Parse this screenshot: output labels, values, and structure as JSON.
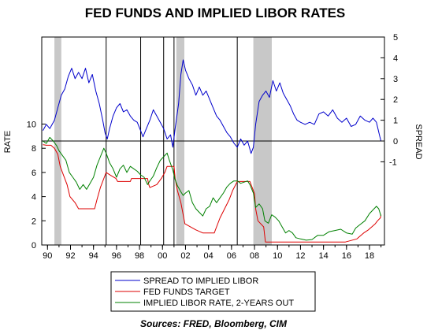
{
  "chart_data": {
    "type": "line",
    "title": "FED FUNDS AND IMPLIED LIBOR RATES",
    "ylabel_left": "RATE",
    "ylabel_right": "SPREAD",
    "source": "Sources: FRED, Bloomberg, CIM",
    "x_range": [
      1989.5,
      2019.3
    ],
    "x_ticks": [
      {
        "x": 1990,
        "label": "90"
      },
      {
        "x": 1992,
        "label": "92"
      },
      {
        "x": 1994,
        "label": "94"
      },
      {
        "x": 1996,
        "label": "96"
      },
      {
        "x": 1998,
        "label": "98"
      },
      {
        "x": 2000,
        "label": "00"
      },
      {
        "x": 2002,
        "label": "02"
      },
      {
        "x": 2004,
        "label": "04"
      },
      {
        "x": 2006,
        "label": "06"
      },
      {
        "x": 2008,
        "label": "08"
      },
      {
        "x": 2010,
        "label": "10"
      },
      {
        "x": 2012,
        "label": "12"
      },
      {
        "x": 2014,
        "label": "14"
      },
      {
        "x": 2016,
        "label": "16"
      },
      {
        "x": 2018,
        "label": "18"
      }
    ],
    "left_axis": {
      "range": [
        0,
        17.2
      ],
      "ticks": [
        0,
        2,
        4,
        6,
        8,
        10
      ]
    },
    "right_axis": {
      "range": [
        -5,
        5
      ],
      "ticks": [
        -1,
        0,
        1,
        2,
        3,
        4,
        5
      ]
    },
    "recessions": [
      [
        1990.6,
        1991.2
      ],
      [
        2001.2,
        2001.9
      ],
      [
        2007.9,
        2009.5
      ]
    ],
    "vertical_markers": [
      1995.1,
      1998.1,
      2000.1,
      2001.0,
      2006.5
    ],
    "colors": {
      "spread": "#0000cc",
      "fed": "#dd0000",
      "libor": "#008000",
      "recession": "#c8c8c8"
    },
    "series": [
      {
        "name": "SPREAD TO IMPLIED LIBOR",
        "axis": "right",
        "points": [
          [
            1989.6,
            0.5
          ],
          [
            1989.9,
            0.8
          ],
          [
            1990.2,
            0.6
          ],
          [
            1990.6,
            1.0
          ],
          [
            1990.9,
            1.6
          ],
          [
            1991.2,
            2.2
          ],
          [
            1991.5,
            2.5
          ],
          [
            1991.8,
            3.1
          ],
          [
            1992.1,
            3.5
          ],
          [
            1992.4,
            3.0
          ],
          [
            1992.7,
            3.3
          ],
          [
            1993.0,
            3.0
          ],
          [
            1993.3,
            3.5
          ],
          [
            1993.6,
            2.8
          ],
          [
            1993.9,
            3.2
          ],
          [
            1994.2,
            2.4
          ],
          [
            1994.5,
            1.8
          ],
          [
            1994.8,
            1.0
          ],
          [
            1995.0,
            0.4
          ],
          [
            1995.2,
            0.1
          ],
          [
            1995.4,
            0.6
          ],
          [
            1995.7,
            1.2
          ],
          [
            1996.0,
            1.6
          ],
          [
            1996.3,
            1.8
          ],
          [
            1996.6,
            1.4
          ],
          [
            1996.9,
            1.5
          ],
          [
            1997.2,
            1.2
          ],
          [
            1997.5,
            1.0
          ],
          [
            1997.8,
            0.9
          ],
          [
            1998.1,
            0.5
          ],
          [
            1998.3,
            0.2
          ],
          [
            1998.6,
            0.6
          ],
          [
            1998.9,
            1.0
          ],
          [
            1999.2,
            1.5
          ],
          [
            1999.5,
            1.2
          ],
          [
            1999.8,
            0.9
          ],
          [
            2000.1,
            0.6
          ],
          [
            2000.4,
            0.1
          ],
          [
            2000.7,
            0.3
          ],
          [
            2000.9,
            -0.3
          ],
          [
            2001.1,
            0.6
          ],
          [
            2001.4,
            1.8
          ],
          [
            2001.6,
            3.2
          ],
          [
            2001.8,
            3.9
          ],
          [
            2002.0,
            3.4
          ],
          [
            2002.3,
            3.0
          ],
          [
            2002.6,
            2.7
          ],
          [
            2002.9,
            2.2
          ],
          [
            2003.2,
            2.6
          ],
          [
            2003.5,
            2.2
          ],
          [
            2003.8,
            2.4
          ],
          [
            2004.1,
            2.0
          ],
          [
            2004.4,
            1.6
          ],
          [
            2004.7,
            1.2
          ],
          [
            2005.0,
            1.0
          ],
          [
            2005.3,
            0.7
          ],
          [
            2005.6,
            0.4
          ],
          [
            2005.9,
            0.2
          ],
          [
            2006.2,
            -0.1
          ],
          [
            2006.5,
            -0.3
          ],
          [
            2006.8,
            0.1
          ],
          [
            2007.1,
            -0.2
          ],
          [
            2007.4,
            0.0
          ],
          [
            2007.7,
            -0.6
          ],
          [
            2007.9,
            -0.3
          ],
          [
            2008.1,
            0.8
          ],
          [
            2008.4,
            1.9
          ],
          [
            2008.7,
            2.2
          ],
          [
            2009.0,
            2.4
          ],
          [
            2009.3,
            2.1
          ],
          [
            2009.6,
            2.9
          ],
          [
            2009.9,
            2.4
          ],
          [
            2010.2,
            2.8
          ],
          [
            2010.5,
            2.3
          ],
          [
            2010.8,
            2.0
          ],
          [
            2011.1,
            1.7
          ],
          [
            2011.4,
            1.3
          ],
          [
            2011.7,
            1.0
          ],
          [
            2012.0,
            0.9
          ],
          [
            2012.4,
            0.8
          ],
          [
            2012.8,
            0.9
          ],
          [
            2013.2,
            0.8
          ],
          [
            2013.6,
            1.3
          ],
          [
            2014.0,
            1.4
          ],
          [
            2014.4,
            1.2
          ],
          [
            2014.8,
            1.5
          ],
          [
            2015.2,
            1.1
          ],
          [
            2015.6,
            0.9
          ],
          [
            2016.0,
            1.1
          ],
          [
            2016.4,
            0.7
          ],
          [
            2016.8,
            0.8
          ],
          [
            2017.2,
            1.2
          ],
          [
            2017.6,
            1.0
          ],
          [
            2018.0,
            0.9
          ],
          [
            2018.3,
            1.1
          ],
          [
            2018.6,
            0.9
          ],
          [
            2018.9,
            0.2
          ],
          [
            2019.0,
            0.0
          ]
        ]
      },
      {
        "name": "FED FUNDS TARGET",
        "axis": "left",
        "points": [
          [
            1989.6,
            8.3
          ],
          [
            1989.9,
            8.25
          ],
          [
            1990.3,
            8.25
          ],
          [
            1990.6,
            8.0
          ],
          [
            1990.9,
            7.5
          ],
          [
            1991.1,
            6.5
          ],
          [
            1991.4,
            5.75
          ],
          [
            1991.7,
            5.0
          ],
          [
            1991.95,
            4.0
          ],
          [
            1992.4,
            3.5
          ],
          [
            1992.7,
            3.0
          ],
          [
            1994.1,
            3.0
          ],
          [
            1994.3,
            3.75
          ],
          [
            1994.6,
            4.75
          ],
          [
            1994.9,
            5.5
          ],
          [
            1995.1,
            6.0
          ],
          [
            1995.5,
            5.75
          ],
          [
            1995.95,
            5.5
          ],
          [
            1996.1,
            5.25
          ],
          [
            1997.2,
            5.25
          ],
          [
            1997.3,
            5.5
          ],
          [
            1998.7,
            5.5
          ],
          [
            1998.8,
            5.0
          ],
          [
            1998.9,
            4.75
          ],
          [
            1999.5,
            5.0
          ],
          [
            1999.7,
            5.25
          ],
          [
            1999.9,
            5.5
          ],
          [
            2000.2,
            6.0
          ],
          [
            2000.4,
            6.5
          ],
          [
            2001.0,
            6.5
          ],
          [
            2001.1,
            5.5
          ],
          [
            2001.3,
            4.5
          ],
          [
            2001.6,
            3.5
          ],
          [
            2001.8,
            2.5
          ],
          [
            2001.95,
            1.75
          ],
          [
            2002.9,
            1.25
          ],
          [
            2003.5,
            1.0
          ],
          [
            2004.5,
            1.0
          ],
          [
            2004.7,
            1.5
          ],
          [
            2005.0,
            2.25
          ],
          [
            2005.4,
            3.0
          ],
          [
            2005.8,
            3.75
          ],
          [
            2006.1,
            4.5
          ],
          [
            2006.5,
            5.25
          ],
          [
            2007.6,
            5.25
          ],
          [
            2007.8,
            4.75
          ],
          [
            2008.0,
            4.25
          ],
          [
            2008.1,
            3.0
          ],
          [
            2008.3,
            2.0
          ],
          [
            2008.8,
            1.5
          ],
          [
            2008.95,
            0.25
          ],
          [
            2015.9,
            0.25
          ],
          [
            2016.9,
            0.5
          ],
          [
            2017.2,
            0.75
          ],
          [
            2017.5,
            1.0
          ],
          [
            2017.9,
            1.25
          ],
          [
            2018.2,
            1.5
          ],
          [
            2018.5,
            1.75
          ],
          [
            2018.7,
            2.0
          ],
          [
            2018.95,
            2.25
          ],
          [
            2019.0,
            2.5
          ]
        ]
      },
      {
        "name": "IMPLIED LIBOR RATE, 2-YEARS OUT",
        "axis": "left",
        "points": [
          [
            1989.6,
            8.6
          ],
          [
            1989.9,
            8.4
          ],
          [
            1990.2,
            8.9
          ],
          [
            1990.5,
            8.6
          ],
          [
            1990.8,
            8.2
          ],
          [
            1991.0,
            7.8
          ],
          [
            1991.3,
            7.4
          ],
          [
            1991.6,
            7.0
          ],
          [
            1991.9,
            6.0
          ],
          [
            1992.2,
            5.6
          ],
          [
            1992.5,
            5.2
          ],
          [
            1992.8,
            4.6
          ],
          [
            1993.1,
            5.0
          ],
          [
            1993.4,
            4.6
          ],
          [
            1993.7,
            5.1
          ],
          [
            1994.0,
            5.6
          ],
          [
            1994.3,
            6.6
          ],
          [
            1994.6,
            7.3
          ],
          [
            1994.9,
            8.0
          ],
          [
            1995.1,
            7.6
          ],
          [
            1995.4,
            6.8
          ],
          [
            1995.7,
            6.3
          ],
          [
            1996.0,
            5.6
          ],
          [
            1996.3,
            6.3
          ],
          [
            1996.6,
            6.6
          ],
          [
            1996.9,
            6.0
          ],
          [
            1997.2,
            6.5
          ],
          [
            1997.5,
            6.3
          ],
          [
            1997.8,
            6.1
          ],
          [
            1998.1,
            5.8
          ],
          [
            1998.4,
            5.6
          ],
          [
            1998.7,
            5.0
          ],
          [
            1998.9,
            5.3
          ],
          [
            1999.2,
            5.7
          ],
          [
            1999.5,
            6.4
          ],
          [
            1999.8,
            7.0
          ],
          [
            2000.1,
            7.3
          ],
          [
            2000.4,
            7.6
          ],
          [
            2000.6,
            7.0
          ],
          [
            2000.9,
            6.2
          ],
          [
            2001.1,
            5.4
          ],
          [
            2001.3,
            4.9
          ],
          [
            2001.6,
            4.4
          ],
          [
            2001.8,
            4.1
          ],
          [
            2002.0,
            4.3
          ],
          [
            2002.3,
            4.5
          ],
          [
            2002.6,
            3.5
          ],
          [
            2002.9,
            3.0
          ],
          [
            2003.2,
            2.7
          ],
          [
            2003.5,
            2.4
          ],
          [
            2003.8,
            3.0
          ],
          [
            2004.1,
            3.2
          ],
          [
            2004.4,
            3.9
          ],
          [
            2004.7,
            3.5
          ],
          [
            2005.0,
            3.9
          ],
          [
            2005.3,
            4.3
          ],
          [
            2005.6,
            4.8
          ],
          [
            2005.9,
            5.1
          ],
          [
            2006.2,
            5.3
          ],
          [
            2006.5,
            5.3
          ],
          [
            2006.8,
            5.1
          ],
          [
            2007.1,
            5.2
          ],
          [
            2007.4,
            5.3
          ],
          [
            2007.6,
            5.0
          ],
          [
            2007.9,
            4.3
          ],
          [
            2008.1,
            3.1
          ],
          [
            2008.4,
            3.4
          ],
          [
            2008.7,
            3.0
          ],
          [
            2008.9,
            2.0
          ],
          [
            2009.2,
            1.8
          ],
          [
            2009.5,
            2.5
          ],
          [
            2009.8,
            2.3
          ],
          [
            2010.1,
            2.0
          ],
          [
            2010.4,
            1.5
          ],
          [
            2010.7,
            1.0
          ],
          [
            2011.0,
            1.2
          ],
          [
            2011.3,
            1.0
          ],
          [
            2011.6,
            0.6
          ],
          [
            2012.0,
            0.5
          ],
          [
            2012.5,
            0.4
          ],
          [
            2013.0,
            0.45
          ],
          [
            2013.5,
            0.8
          ],
          [
            2014.0,
            0.8
          ],
          [
            2014.5,
            1.1
          ],
          [
            2015.0,
            1.2
          ],
          [
            2015.5,
            1.3
          ],
          [
            2016.0,
            1.0
          ],
          [
            2016.5,
            0.9
          ],
          [
            2016.8,
            1.4
          ],
          [
            2017.2,
            1.7
          ],
          [
            2017.6,
            2.0
          ],
          [
            2018.0,
            2.6
          ],
          [
            2018.3,
            2.9
          ],
          [
            2018.6,
            3.2
          ],
          [
            2018.8,
            3.0
          ],
          [
            2019.0,
            2.4
          ]
        ]
      }
    ]
  }
}
